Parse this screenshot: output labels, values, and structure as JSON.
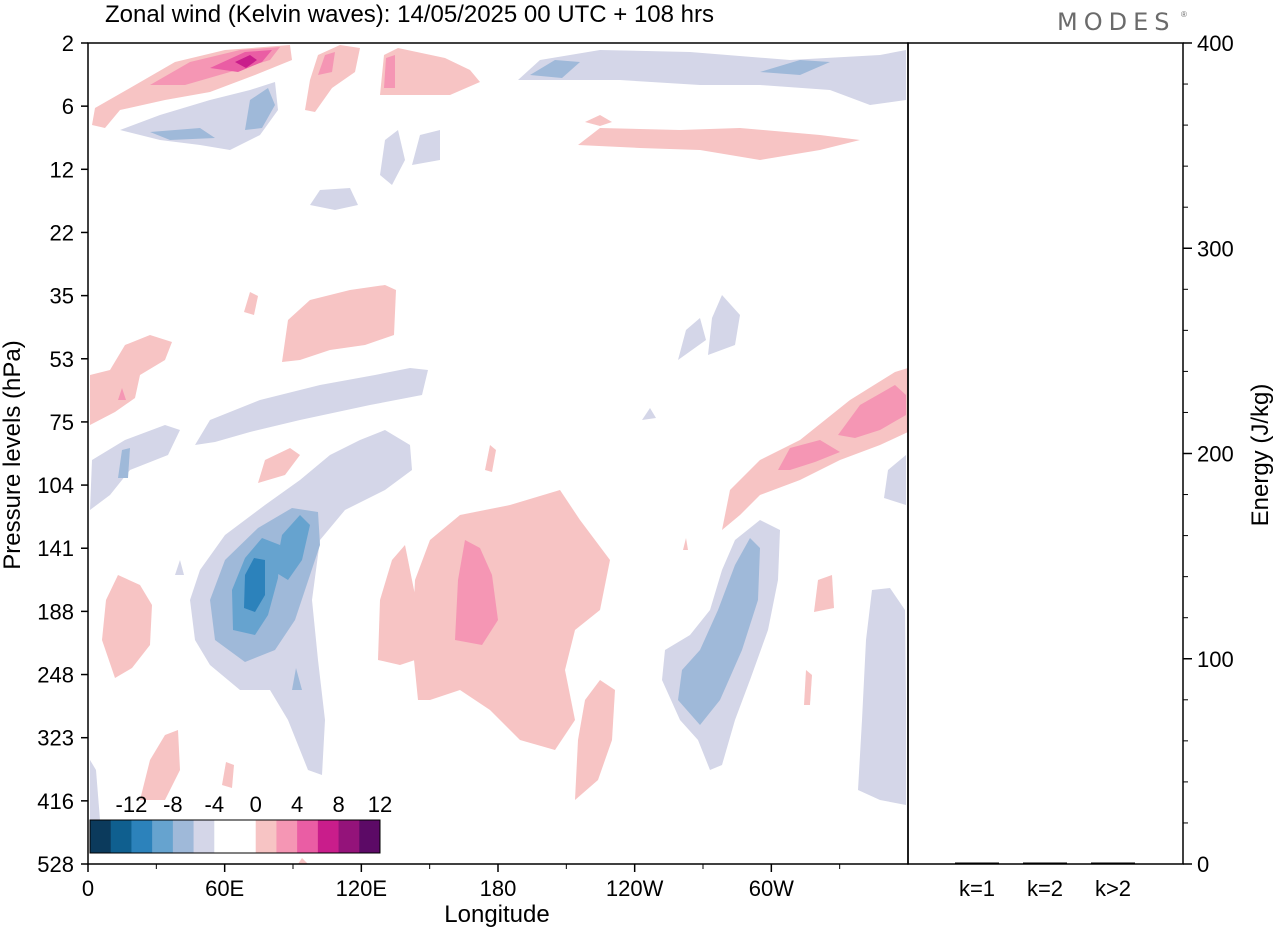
{
  "brand": "MODES",
  "brand_mark": "®",
  "chart_data": {
    "type": "heatmap",
    "title": "Zonal wind (Kelvin waves):  14/05/2025  00 UTC  + 108 hrs",
    "xlabel": "Longitude",
    "ylabel": "Pressure levels (hPa)",
    "x_ticks": [
      "0",
      "60E",
      "120E",
      "180",
      "120W",
      "60W"
    ],
    "x_tick_degrees": [
      0,
      60,
      120,
      180,
      240,
      300
    ],
    "x_range_degrees": [
      0,
      360
    ],
    "y_ticks": [
      "2",
      "6",
      "12",
      "22",
      "35",
      "53",
      "75",
      "104",
      "141",
      "188",
      "248",
      "323",
      "416",
      "528"
    ],
    "colorbar": {
      "labels": [
        "-12",
        "-8",
        "-4",
        "0",
        "4",
        "8",
        "12"
      ],
      "colors": [
        "#0b3a5c",
        "#0f5f8f",
        "#2c82bb",
        "#66a3cf",
        "#9fb9d9",
        "#d4d6e8",
        "#ffffff",
        "#ffffff",
        "#f7c4c4",
        "#f596b4",
        "#ea5da4",
        "#c91d8b",
        "#94137a",
        "#5c0a66"
      ]
    },
    "anomalies": [
      {
        "level": "2-6",
        "lon": [
          30,
          85
        ],
        "sign": "+",
        "peak": 8
      },
      {
        "level": "2-6",
        "lon": [
          95,
          105
        ],
        "sign": "+",
        "peak": 6
      },
      {
        "level": "2-6",
        "lon": [
          130,
          140
        ],
        "sign": "+",
        "peak": 5
      },
      {
        "level": "2-6",
        "lon": [
          190,
          350
        ],
        "sign": "-",
        "peak": -4
      },
      {
        "level": "6-12",
        "lon": [
          30,
          80
        ],
        "sign": "-",
        "peak": -5
      },
      {
        "level": "6-12",
        "lon": [
          210,
          330
        ],
        "sign": "+",
        "peak": 3
      },
      {
        "level": "35-53",
        "lon": [
          85,
          135
        ],
        "sign": "+",
        "peak": 3
      },
      {
        "level": "53-104",
        "lon": [
          0,
          35
        ],
        "sign": "+",
        "peak": 4
      },
      {
        "level": "53-104",
        "lon": [
          45,
          140
        ],
        "sign": "-",
        "peak": -3
      },
      {
        "level": "75-141",
        "lon": [
          280,
          360
        ],
        "sign": "+",
        "peak": 6
      },
      {
        "level": "104-323",
        "lon": [
          40,
          100
        ],
        "sign": "-",
        "peak": -11
      },
      {
        "level": "141-323",
        "lon": [
          140,
          230
        ],
        "sign": "+",
        "peak": 6
      },
      {
        "level": "141-323",
        "lon": [
          255,
          300
        ],
        "sign": "-",
        "peak": -6
      },
      {
        "level": "188-416",
        "lon": [
          330,
          360
        ],
        "sign": "-",
        "peak": -3
      }
    ],
    "energy": {
      "ylabel": "Energy (J/kg)",
      "ylim": [
        0,
        400
      ],
      "y_ticks": [
        "0",
        "100",
        "200",
        "300",
        "400"
      ],
      "y_tick_values": [
        0,
        100,
        200,
        300,
        400
      ],
      "categories": [
        "k=1",
        "k=2",
        "k>2"
      ],
      "values": [
        0,
        0,
        0
      ]
    }
  }
}
